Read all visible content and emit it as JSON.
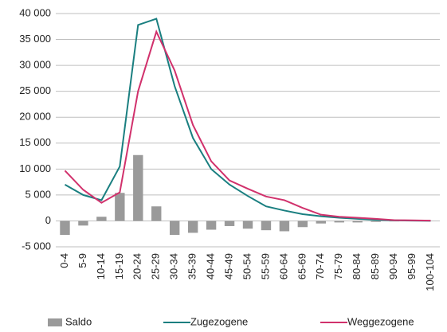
{
  "chart_data": {
    "type": "combo",
    "categories": [
      "0-4",
      "5-9",
      "10-14",
      "15-19",
      "20-24",
      "25-29",
      "30-34",
      "35-39",
      "40-44",
      "45-49",
      "50-54",
      "55-59",
      "60-64",
      "65-69",
      "70-74",
      "75-79",
      "80-84",
      "85-89",
      "90-94",
      "95-99",
      "100-104"
    ],
    "series": [
      {
        "name": "Saldo",
        "type": "bar",
        "color": "#9a9a9a",
        "values": [
          -2700,
          -900,
          800,
          5400,
          12700,
          2800,
          -2700,
          -2300,
          -1700,
          -1000,
          -1500,
          -1800,
          -2000,
          -1200,
          -500,
          -300,
          -300,
          -200,
          -100,
          0,
          0
        ]
      },
      {
        "name": "Zugezogene",
        "type": "line",
        "color": "#1a7f80",
        "values": [
          7000,
          5000,
          4000,
          10500,
          37800,
          39000,
          26000,
          16000,
          10000,
          7000,
          4800,
          2800,
          2000,
          1300,
          900,
          600,
          400,
          200,
          100,
          50,
          20
        ]
      },
      {
        "name": "Weggezogene",
        "type": "line",
        "color": "#d1316c",
        "values": [
          9700,
          6000,
          3500,
          5500,
          25000,
          36500,
          29000,
          18500,
          11500,
          7800,
          6200,
          4700,
          4000,
          2500,
          1200,
          800,
          600,
          400,
          150,
          100,
          50
        ]
      }
    ],
    "ylim": [
      -5000,
      40000
    ],
    "yticks": [
      {
        "value": -5000,
        "label": "-5 000"
      },
      0,
      {
        "value": 5000,
        "label": "5 000"
      },
      {
        "value": 10000,
        "label": "10 000"
      },
      {
        "value": 15000,
        "label": "15 000"
      },
      {
        "value": 20000,
        "label": "20 000"
      },
      {
        "value": 25000,
        "label": "25 000"
      },
      {
        "value": 30000,
        "label": "30 000"
      },
      {
        "value": 35000,
        "label": "35 000"
      },
      {
        "value": 40000,
        "label": "40 000"
      }
    ],
    "grid": true
  }
}
